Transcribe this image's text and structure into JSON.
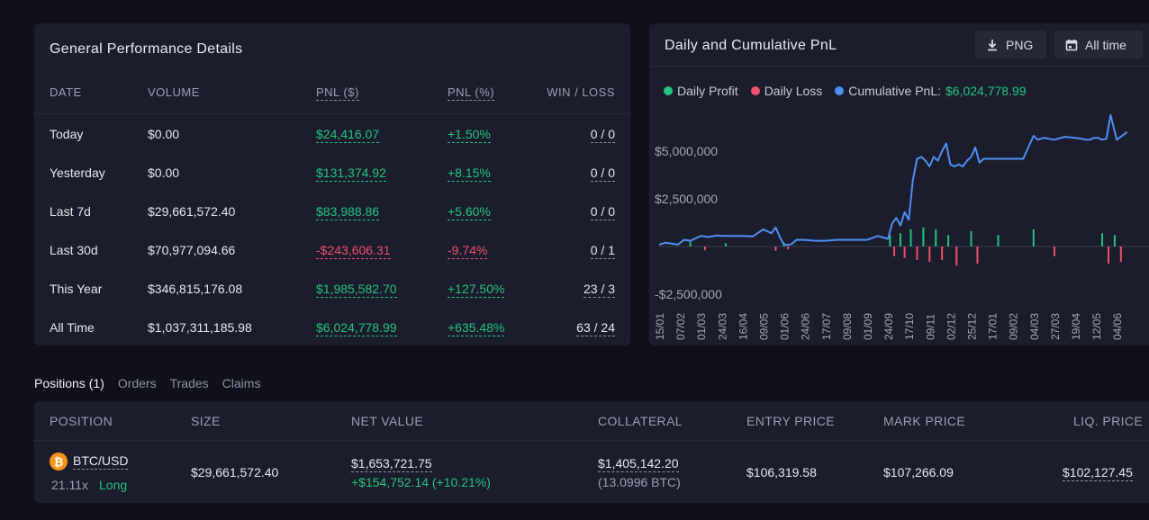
{
  "performance": {
    "title": "General Performance Details",
    "headers": [
      "DATE",
      "VOLUME",
      "PNL ($)",
      "PNL (%)",
      "WIN / LOSS"
    ],
    "rows": [
      {
        "date": "Today",
        "volume": "$0.00",
        "pnl": "$24,416.07",
        "pct": "+1.50%",
        "wl": "0 / 0",
        "sign": "pos"
      },
      {
        "date": "Yesterday",
        "volume": "$0.00",
        "pnl": "$131,374.92",
        "pct": "+8.15%",
        "wl": "0 / 0",
        "sign": "pos"
      },
      {
        "date": "Last 7d",
        "volume": "$29,661,572.40",
        "pnl": "$83,988.86",
        "pct": "+5.60%",
        "wl": "0 / 0",
        "sign": "pos"
      },
      {
        "date": "Last 30d",
        "volume": "$70,977,094.66",
        "pnl": "-$243,606.31",
        "pct": "-9.74%",
        "wl": "0 / 1",
        "sign": "neg"
      },
      {
        "date": "This Year",
        "volume": "$346,815,176.08",
        "pnl": "$1,985,582.70",
        "pct": "+127.50%",
        "wl": "23 / 3",
        "sign": "pos"
      },
      {
        "date": "All Time",
        "volume": "$1,037,311,185.98",
        "pnl": "$6,024,778.99",
        "pct": "+635.48%",
        "wl": "63 / 24",
        "sign": "pos"
      }
    ]
  },
  "chart_panel": {
    "title": "Daily and Cumulative PnL",
    "png_label": "PNG",
    "range_label": "All time",
    "legend": {
      "profit": "Daily Profit",
      "loss": "Daily Loss",
      "cumulative_prefix": "Cumulative PnL:",
      "cumulative_value": "$6,024,778.99"
    }
  },
  "chart_data": {
    "type": "line",
    "y_ticks": [
      "$5,000,000",
      "$2,500,000",
      "-$2,500,000"
    ],
    "y_tick_values": [
      5000000,
      2500000,
      -2500000
    ],
    "ylim": [
      -3000000,
      7000000
    ],
    "x_tick_labels": [
      "15/01",
      "07/02",
      "01/03",
      "24/03",
      "16/04",
      "09/05",
      "01/06",
      "24/06",
      "17/07",
      "09/08",
      "01/09",
      "24/09",
      "17/10",
      "09/11",
      "02/12",
      "25/12",
      "17/01",
      "09/02",
      "04/03",
      "27/03",
      "19/04",
      "12/05",
      "04/06"
    ],
    "series": [
      {
        "name": "Cumulative PnL",
        "color": "#4f8ff5",
        "x": [
          0,
          0.3,
          0.6,
          0.9,
          1.2,
          1.5,
          2.0,
          2.4,
          2.8,
          3.0,
          3.5,
          4.0,
          4.5,
          5.0,
          5.4,
          5.6,
          5.8,
          6.0,
          6.2,
          6.4,
          6.6,
          7.0,
          7.5,
          8.0,
          8.5,
          9.0,
          9.5,
          10.0,
          10.5,
          11.0,
          11.2,
          11.4,
          11.6,
          11.8,
          12.0,
          12.2,
          12.4,
          12.6,
          12.8,
          13.0,
          13.2,
          13.4,
          13.6,
          13.8,
          14.0,
          14.2,
          14.4,
          14.6,
          14.8,
          15.0,
          15.2,
          15.4,
          15.6,
          15.8,
          16.0,
          16.5,
          17.0,
          17.5,
          18.0,
          18.2,
          18.5,
          19.0,
          19.5,
          20.0,
          20.3,
          20.5,
          20.7,
          20.9,
          21.1,
          21.3,
          21.5,
          21.7,
          22.0,
          22.5
        ],
        "values": [
          100000,
          200000,
          150000,
          100000,
          350000,
          300000,
          550000,
          500000,
          580000,
          550000,
          550000,
          550000,
          530000,
          900000,
          700000,
          1000000,
          500000,
          100000,
          80000,
          150000,
          350000,
          350000,
          300000,
          300000,
          350000,
          350000,
          350000,
          350000,
          550000,
          400000,
          1200000,
          1500000,
          1100000,
          1800000,
          1400000,
          3500000,
          4600000,
          4700000,
          4500000,
          4200000,
          4700000,
          4500000,
          5000000,
          5400000,
          4300000,
          4200000,
          4300000,
          4200000,
          4500000,
          4700000,
          5200000,
          4400000,
          4600000,
          4600000,
          4600000,
          4600000,
          4600000,
          4600000,
          5800000,
          5600000,
          5700000,
          5600000,
          5750000,
          5700000,
          5650000,
          5600000,
          5600000,
          5700000,
          5700000,
          5600000,
          5650000,
          6900000,
          5600000,
          6000000
        ]
      }
    ],
    "daily_bars": [
      {
        "x": 1.5,
        "value": 250000
      },
      {
        "x": 2.2,
        "value": -200000
      },
      {
        "x": 3.2,
        "value": 180000
      },
      {
        "x": 5.6,
        "value": -220000
      },
      {
        "x": 6.0,
        "value": 200000
      },
      {
        "x": 6.2,
        "value": -150000
      },
      {
        "x": 11.1,
        "value": 600000
      },
      {
        "x": 11.3,
        "value": -500000
      },
      {
        "x": 11.6,
        "value": 700000
      },
      {
        "x": 11.8,
        "value": -600000
      },
      {
        "x": 12.1,
        "value": 900000
      },
      {
        "x": 12.4,
        "value": -700000
      },
      {
        "x": 12.7,
        "value": 1000000
      },
      {
        "x": 13.0,
        "value": -800000
      },
      {
        "x": 13.3,
        "value": 900000
      },
      {
        "x": 13.6,
        "value": -700000
      },
      {
        "x": 13.9,
        "value": 600000
      },
      {
        "x": 14.3,
        "value": -1000000
      },
      {
        "x": 15.0,
        "value": 800000
      },
      {
        "x": 15.3,
        "value": -900000
      },
      {
        "x": 16.3,
        "value": 600000
      },
      {
        "x": 18.0,
        "value": 900000
      },
      {
        "x": 19.0,
        "value": -500000
      },
      {
        "x": 21.3,
        "value": 700000
      },
      {
        "x": 21.6,
        "value": -900000
      },
      {
        "x": 21.9,
        "value": 600000
      },
      {
        "x": 22.2,
        "value": -800000
      }
    ]
  },
  "tabs": [
    "Positions (1)",
    "Orders",
    "Trades",
    "Claims"
  ],
  "positions": {
    "headers": [
      "POSITION",
      "SIZE",
      "NET VALUE",
      "COLLATERAL",
      "ENTRY PRICE",
      "MARK PRICE",
      "LIQ. PRICE"
    ],
    "row": {
      "icon": "bitcoin-icon",
      "market": "BTC/USD",
      "leverage": "21.11x",
      "side": "Long",
      "size": "$29,661,572.40",
      "net_value": "$1,653,721.75",
      "net_change": "+$154,752.14 (+10.21%)",
      "collateral": "$1,405,142.20",
      "collateral_btc": "(13.0996 BTC)",
      "entry_price": "$106,319.58",
      "mark_price": "$107,266.09",
      "liq_price": "$102,127.45"
    }
  },
  "colors": {
    "profit": "#22c47e",
    "loss": "#f0506e",
    "cumulative": "#4f8ff5",
    "panel": "#1b1d2c",
    "background": "#0f1019"
  }
}
